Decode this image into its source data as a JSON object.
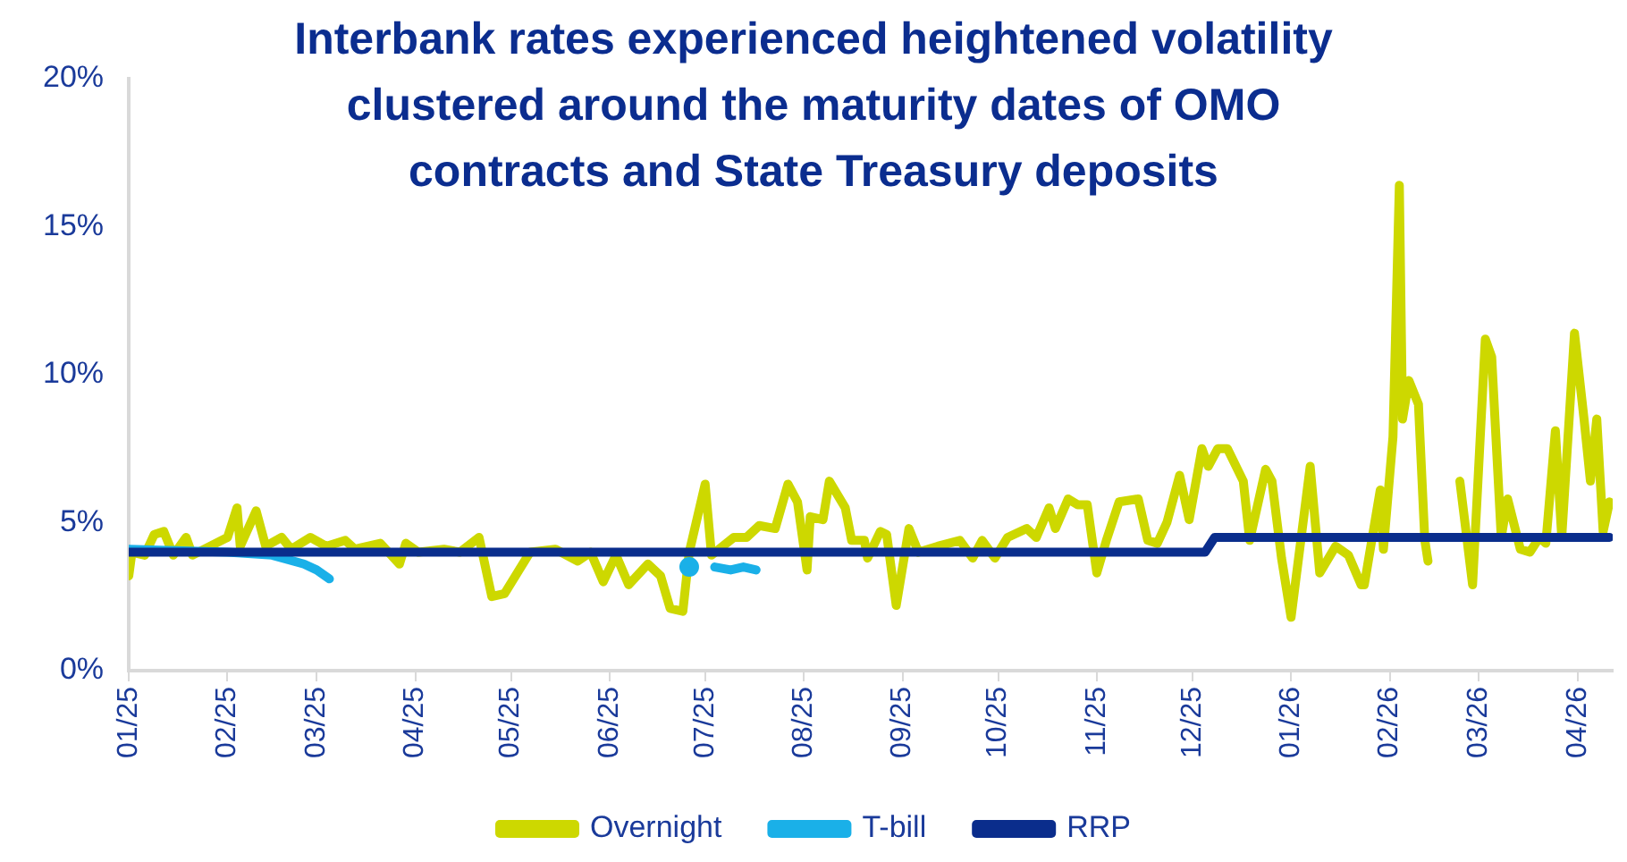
{
  "chart_data": {
    "type": "line",
    "title": "Interbank rates experienced heightened volatility clustered around the maturity dates of OMO contracts and State Treasury deposits",
    "xlim": [
      "2025-01-01",
      "2026-04-12"
    ],
    "xticks": [
      {
        "value": "2025-01-01",
        "label": "01/25"
      },
      {
        "value": "2025-02-01",
        "label": "02/25"
      },
      {
        "value": "2025-03-01",
        "label": "03/25"
      },
      {
        "value": "2025-04-01",
        "label": "04/25"
      },
      {
        "value": "2025-05-01",
        "label": "05/25"
      },
      {
        "value": "2025-06-01",
        "label": "06/25"
      },
      {
        "value": "2025-07-01",
        "label": "07/25"
      },
      {
        "value": "2025-08-01",
        "label": "08/25"
      },
      {
        "value": "2025-09-01",
        "label": "09/25"
      },
      {
        "value": "2025-10-01",
        "label": "10/25"
      },
      {
        "value": "2025-11-01",
        "label": "11/25"
      },
      {
        "value": "2025-12-01",
        "label": "12/25"
      },
      {
        "value": "2026-01-01",
        "label": "01/26"
      },
      {
        "value": "2026-02-01",
        "label": "02/26"
      },
      {
        "value": "2026-03-01",
        "label": "03/26"
      },
      {
        "value": "2026-04-01",
        "label": "04/26"
      }
    ],
    "ylim": [
      0,
      20
    ],
    "yticks": [
      {
        "value": 0,
        "label": "0%"
      },
      {
        "value": 5,
        "label": "5%"
      },
      {
        "value": 10,
        "label": "10%"
      },
      {
        "value": 15,
        "label": "15%"
      },
      {
        "value": 20,
        "label": "20%"
      }
    ],
    "grid": false,
    "legend": "bottom",
    "marker": "none",
    "line_style": "solid",
    "series": [
      {
        "name": "Overnight",
        "color": "#cdd800",
        "x": [
          "2025-01-01",
          "2025-01-02",
          "2025-01-06",
          "2025-01-09",
          "2025-01-12",
          "2025-01-15",
          "2025-01-19",
          "2025-01-21",
          "2025-02-01",
          "2025-02-04",
          "2025-02-05",
          "2025-02-10",
          "2025-02-13",
          "2025-02-18",
          "2025-02-21",
          "2025-02-27",
          "2025-03-04",
          "2025-03-10",
          "2025-03-13",
          "2025-03-21",
          "2025-03-27",
          "2025-03-29",
          "2025-04-02",
          "2025-04-10",
          "2025-04-15",
          "2025-04-21",
          "2025-04-25",
          "2025-04-29",
          "2025-05-07",
          "2025-05-15",
          "2025-05-22",
          "2025-05-26",
          "2025-05-30",
          "2025-06-03",
          "2025-06-07",
          "2025-06-13",
          "2025-06-17",
          "2025-06-20",
          "2025-06-24",
          "2025-06-26",
          "2025-07-01",
          "2025-07-03",
          "2025-07-10",
          "2025-07-14",
          "2025-07-18",
          "2025-07-23",
          "2025-07-27",
          "2025-07-30",
          "2025-08-02",
          "2025-08-03",
          "2025-08-07",
          "2025-08-09",
          "2025-08-14",
          "2025-08-16",
          "2025-08-20",
          "2025-08-21",
          "2025-08-25",
          "2025-08-27",
          "2025-08-30",
          "2025-09-03",
          "2025-09-06",
          "2025-09-12",
          "2025-09-19",
          "2025-09-23",
          "2025-09-26",
          "2025-09-30",
          "2025-10-04",
          "2025-10-10",
          "2025-10-13",
          "2025-10-17",
          "2025-10-19",
          "2025-10-23",
          "2025-10-26",
          "2025-10-29",
          "2025-11-01",
          "2025-11-04",
          "2025-11-08",
          "2025-11-14",
          "2025-11-17",
          "2025-11-20",
          "2025-11-23",
          "2025-11-27",
          "2025-11-30",
          "2025-12-04",
          "2025-12-06",
          "2025-12-09",
          "2025-12-12",
          "2025-12-17",
          "2025-12-19",
          "2025-12-24",
          "2025-12-26",
          "2025-12-29",
          "2026-01-01",
          "2026-01-07",
          "2026-01-10",
          "2026-01-15",
          "2026-01-19",
          "2026-01-23",
          "2026-01-24",
          "2026-01-29",
          "2026-01-30",
          "2026-02-02",
          "2026-02-04",
          "2026-02-05",
          "2026-02-07",
          "2026-02-10",
          "2026-02-12",
          "2026-02-13",
          "2026-02-18",
          "2026-02-23",
          "2026-02-27",
          "2026-03-03",
          "2026-03-05",
          "2026-03-08",
          "2026-03-10",
          "2026-03-14",
          "2026-03-17",
          "2026-03-20",
          "2026-03-22",
          "2026-03-25",
          "2026-03-27",
          "2026-03-31",
          "2026-04-03",
          "2026-04-05",
          "2026-04-07",
          "2026-04-09",
          "2026-04-11"
        ],
        "values": [
          3.2,
          4.0,
          3.9,
          4.6,
          4.7,
          3.9,
          4.5,
          3.9,
          4.5,
          5.5,
          4.2,
          5.4,
          4.2,
          4.5,
          4.1,
          4.5,
          4.2,
          4.4,
          4.1,
          4.3,
          3.6,
          4.3,
          4.0,
          4.1,
          4.0,
          4.5,
          2.5,
          2.6,
          4.0,
          4.1,
          3.7,
          4.0,
          3.0,
          3.9,
          2.9,
          3.6,
          3.2,
          2.1,
          2.0,
          4.0,
          6.3,
          3.9,
          4.5,
          4.5,
          4.9,
          4.8,
          6.3,
          5.7,
          3.4,
          5.2,
          5.1,
          6.4,
          5.5,
          4.4,
          4.4,
          3.8,
          4.7,
          4.6,
          2.2,
          4.8,
          4.0,
          4.2,
          4.4,
          3.8,
          4.4,
          3.8,
          4.5,
          4.8,
          4.5,
          5.5,
          4.8,
          5.8,
          5.6,
          5.6,
          3.3,
          4.4,
          5.7,
          5.8,
          4.4,
          4.3,
          5.0,
          6.6,
          5.1,
          7.5,
          6.9,
          7.5,
          7.5,
          6.4,
          4.4,
          6.8,
          6.4,
          3.8,
          1.8,
          6.9,
          3.3,
          4.2,
          3.9,
          2.9,
          2.9,
          6.1,
          4.1,
          7.9,
          16.4,
          8.5,
          9.8,
          9.0,
          4.4,
          3.7,
          null,
          6.4,
          2.9,
          11.2,
          10.6,
          4.5,
          5.8,
          4.1,
          4.0,
          4.5,
          4.3,
          8.1,
          4.5,
          11.4,
          8.5,
          6.4,
          8.5,
          4.7,
          5.7
        ]
      },
      {
        "name": "T-bill",
        "color": "#1ab0e8",
        "x": [
          "2025-01-01",
          "2025-02-01",
          "2025-02-15",
          "2025-02-25",
          "2025-03-01",
          "2025-03-05",
          "2025-03-20",
          "2025-06-26",
          "2025-06-30",
          "2025-07-04",
          "2025-07-09",
          "2025-07-13",
          "2025-07-17"
        ],
        "values": [
          4.1,
          4.0,
          3.9,
          3.6,
          3.4,
          3.1,
          null,
          3.5,
          null,
          3.5,
          3.4,
          3.5,
          3.4
        ]
      },
      {
        "name": "RRP",
        "color": "#0a2d8c",
        "x": [
          "2025-01-01",
          "2025-12-05",
          "2025-12-08",
          "2026-04-11"
        ],
        "values": [
          4.0,
          4.0,
          4.5,
          4.5
        ]
      }
    ]
  }
}
